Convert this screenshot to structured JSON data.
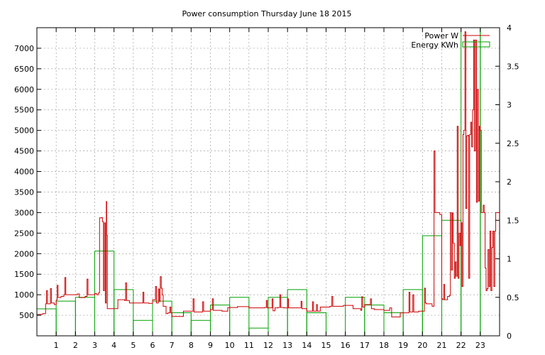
{
  "chart_data": {
    "type": "line",
    "title": "Power consumption Thursday June 18 2015",
    "xlabel": "",
    "ylabel": "",
    "x_ticks": [
      "1",
      "2",
      "3",
      "4",
      "5",
      "6",
      "7",
      "8",
      "9",
      "10",
      "11",
      "12",
      "13",
      "14",
      "15",
      "16",
      "17",
      "18",
      "19",
      "20",
      "21",
      "22",
      "23"
    ],
    "xlim": [
      0,
      24
    ],
    "ylim_left": [
      0,
      7500
    ],
    "ylim_right": [
      0,
      4
    ],
    "y_ticks_left": [
      500,
      1000,
      1500,
      2000,
      2500,
      3000,
      3500,
      4000,
      4500,
      5000,
      5500,
      6000,
      6500,
      7000
    ],
    "y_ticks_right": [
      0,
      0.5,
      1,
      1.5,
      2,
      2.5,
      3,
      3.5,
      4
    ],
    "grid": true,
    "legend_position": "top-right",
    "colors": {
      "power": "#cc0000",
      "energy": "#00a000",
      "grid": "#a0a0a0",
      "axis": "#000000"
    },
    "series": [
      {
        "name": "Power W",
        "axis": "left",
        "style": "step",
        "points": [
          [
            0.0,
            520
          ],
          [
            0.3,
            540
          ],
          [
            0.45,
            780
          ],
          [
            0.5,
            1100
          ],
          [
            0.55,
            780
          ],
          [
            0.7,
            1150
          ],
          [
            0.75,
            800
          ],
          [
            0.9,
            760
          ],
          [
            1.0,
            870
          ],
          [
            1.05,
            1230
          ],
          [
            1.1,
            930
          ],
          [
            1.25,
            960
          ],
          [
            1.4,
            1000
          ],
          [
            1.45,
            1420
          ],
          [
            1.5,
            1000
          ],
          [
            2.1,
            1020
          ],
          [
            2.2,
            930
          ],
          [
            2.5,
            960
          ],
          [
            2.6,
            1380
          ],
          [
            2.65,
            1000
          ],
          [
            3.0,
            1030
          ],
          [
            3.1,
            1000
          ],
          [
            3.2,
            1050
          ],
          [
            3.25,
            2870
          ],
          [
            3.35,
            2880
          ],
          [
            3.4,
            2780
          ],
          [
            3.45,
            1100
          ],
          [
            3.5,
            2750
          ],
          [
            3.55,
            800
          ],
          [
            3.6,
            3270
          ],
          [
            3.62,
            2450
          ],
          [
            3.65,
            660
          ],
          [
            4.1,
            660
          ],
          [
            4.2,
            880
          ],
          [
            4.55,
            860
          ],
          [
            4.6,
            1290
          ],
          [
            4.65,
            860
          ],
          [
            4.8,
            800
          ],
          [
            5.4,
            800
          ],
          [
            5.5,
            1060
          ],
          [
            5.55,
            800
          ],
          [
            5.8,
            790
          ],
          [
            6.0,
            880
          ],
          [
            6.15,
            1200
          ],
          [
            6.2,
            800
          ],
          [
            6.3,
            1140
          ],
          [
            6.35,
            840
          ],
          [
            6.4,
            1440
          ],
          [
            6.45,
            1160
          ],
          [
            6.5,
            1000
          ],
          [
            6.55,
            720
          ],
          [
            6.7,
            540
          ],
          [
            6.8,
            560
          ],
          [
            6.9,
            700
          ],
          [
            6.95,
            560
          ],
          [
            7.0,
            470
          ],
          [
            7.4,
            470
          ],
          [
            7.6,
            600
          ],
          [
            8.0,
            600
          ],
          [
            8.1,
            900
          ],
          [
            8.15,
            580
          ],
          [
            8.5,
            580
          ],
          [
            8.6,
            830
          ],
          [
            8.65,
            600
          ],
          [
            9.0,
            640
          ],
          [
            9.1,
            900
          ],
          [
            9.15,
            620
          ],
          [
            9.6,
            600
          ],
          [
            9.9,
            690
          ],
          [
            10.4,
            710
          ],
          [
            11.0,
            680
          ],
          [
            11.8,
            690
          ],
          [
            11.9,
            860
          ],
          [
            11.95,
            680
          ],
          [
            12.2,
            900
          ],
          [
            12.25,
            610
          ],
          [
            12.35,
            680
          ],
          [
            12.5,
            690
          ],
          [
            12.6,
            1000
          ],
          [
            12.65,
            690
          ],
          [
            12.8,
            680
          ],
          [
            13.0,
            900
          ],
          [
            13.05,
            680
          ],
          [
            13.3,
            680
          ],
          [
            13.5,
            680
          ],
          [
            13.7,
            840
          ],
          [
            13.75,
            660
          ],
          [
            14.0,
            600
          ],
          [
            14.3,
            830
          ],
          [
            14.35,
            600
          ],
          [
            14.5,
            760
          ],
          [
            14.55,
            600
          ],
          [
            14.7,
            700
          ],
          [
            15.2,
            720
          ],
          [
            15.3,
            960
          ],
          [
            15.35,
            720
          ],
          [
            15.9,
            740
          ],
          [
            16.4,
            660
          ],
          [
            16.8,
            620
          ],
          [
            16.85,
            950
          ],
          [
            16.9,
            700
          ],
          [
            17.0,
            760
          ],
          [
            17.3,
            900
          ],
          [
            17.35,
            660
          ],
          [
            17.5,
            640
          ],
          [
            18.0,
            620
          ],
          [
            18.3,
            680
          ],
          [
            18.4,
            460
          ],
          [
            18.8,
            460
          ],
          [
            18.85,
            560
          ],
          [
            19.2,
            560
          ],
          [
            19.3,
            1060
          ],
          [
            19.35,
            580
          ],
          [
            19.5,
            1000
          ],
          [
            19.55,
            580
          ],
          [
            19.8,
            600
          ],
          [
            20.1,
            1160
          ],
          [
            20.15,
            800
          ],
          [
            20.2,
            780
          ],
          [
            20.5,
            720
          ],
          [
            20.6,
            4500
          ],
          [
            20.65,
            3000
          ],
          [
            20.9,
            2950
          ],
          [
            21.0,
            900
          ],
          [
            21.05,
            880
          ],
          [
            21.1,
            1250
          ],
          [
            21.15,
            880
          ],
          [
            21.3,
            960
          ],
          [
            21.4,
            980
          ],
          [
            21.45,
            3000
          ],
          [
            21.5,
            1600
          ],
          [
            21.55,
            2990
          ],
          [
            21.6,
            2250
          ],
          [
            21.65,
            1400
          ],
          [
            21.7,
            1800
          ],
          [
            21.75,
            1450
          ],
          [
            21.8,
            5100
          ],
          [
            21.85,
            1400
          ],
          [
            21.9,
            2500
          ],
          [
            21.95,
            2200
          ],
          [
            22.0,
            2750
          ],
          [
            22.05,
            1200
          ],
          [
            22.1,
            4900
          ],
          [
            22.15,
            5000
          ],
          [
            22.2,
            7400
          ],
          [
            22.25,
            3100
          ],
          [
            22.3,
            4870
          ],
          [
            22.35,
            4880
          ],
          [
            22.4,
            1400
          ],
          [
            22.45,
            4900
          ],
          [
            22.5,
            5200
          ],
          [
            22.55,
            4600
          ],
          [
            22.6,
            5500
          ],
          [
            22.65,
            7200
          ],
          [
            22.7,
            4500
          ],
          [
            22.75,
            7200
          ],
          [
            22.8,
            3250
          ],
          [
            22.85,
            6000
          ],
          [
            22.9,
            3280
          ],
          [
            22.95,
            5100
          ],
          [
            23.0,
            5000
          ],
          [
            23.05,
            3000
          ],
          [
            23.15,
            3180
          ],
          [
            23.2,
            3000
          ],
          [
            23.25,
            1650
          ],
          [
            23.3,
            1100
          ],
          [
            23.35,
            1150
          ],
          [
            23.4,
            2100
          ],
          [
            23.45,
            1200
          ],
          [
            23.5,
            2550
          ],
          [
            23.55,
            1100
          ],
          [
            23.6,
            2150
          ],
          [
            23.65,
            2550
          ],
          [
            23.7,
            1200
          ],
          [
            23.75,
            2550
          ],
          [
            23.8,
            3000
          ],
          [
            24.0,
            3000
          ]
        ]
      },
      {
        "name": "Energy KWh",
        "axis": "right",
        "style": "boxes",
        "values": [
          0.35,
          0.45,
          0.5,
          1.1,
          0.6,
          0.2,
          0.45,
          0.3,
          0.2,
          0.4,
          0.5,
          0.1,
          0.5,
          0.6,
          0.3,
          0.0,
          0.5,
          0.4,
          0.3,
          0.6,
          1.3,
          1.5,
          4.0,
          4.0
        ]
      }
    ]
  }
}
